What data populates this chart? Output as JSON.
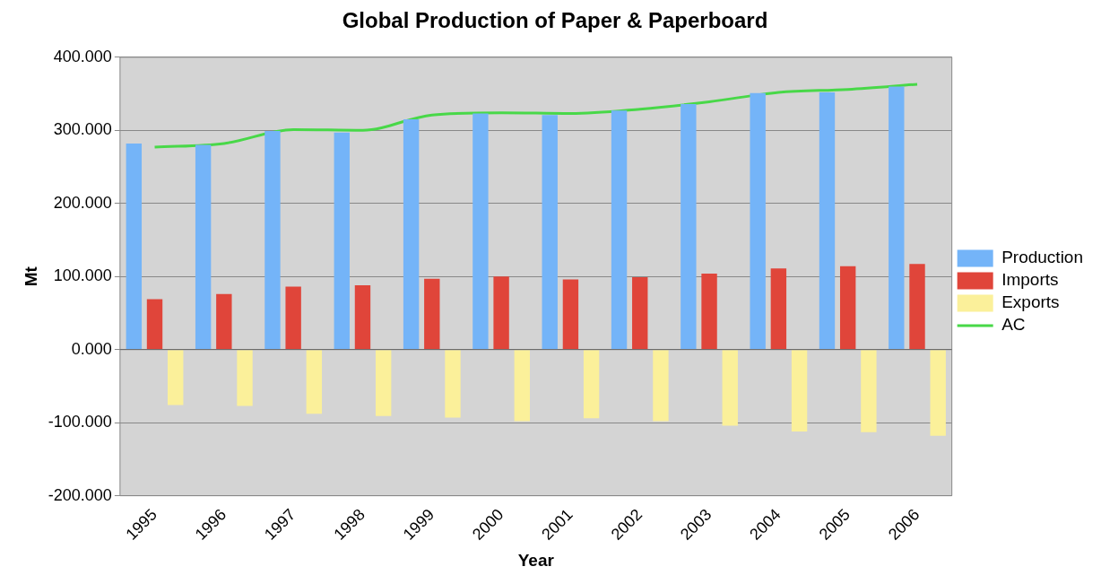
{
  "chart_data": {
    "type": "bar",
    "title": "Global Production of Paper & Paperboard",
    "xlabel": "Year",
    "ylabel": "Mt",
    "categories": [
      "1995",
      "1996",
      "1997",
      "1998",
      "1999",
      "2000",
      "2001",
      "2002",
      "2003",
      "2004",
      "2005",
      "2006"
    ],
    "series": [
      {
        "name": "Production",
        "color": "#74b4f8",
        "values": [
          282,
          280,
          299,
          297,
          315,
          323,
          321,
          327,
          336,
          351,
          352,
          360
        ]
      },
      {
        "name": "Imports",
        "color": "#e0453a",
        "values": [
          69,
          76,
          86,
          88,
          97,
          100,
          96,
          99,
          104,
          111,
          114,
          117
        ]
      },
      {
        "name": "Exports",
        "color": "#fbf09a",
        "values": [
          -76,
          -77,
          -88,
          -91,
          -93,
          -98,
          -94,
          -98,
          -104,
          -112,
          -113,
          -118
        ]
      },
      {
        "name": "AC",
        "type": "line",
        "color": "#48d848",
        "marker": "none",
        "values": [
          277,
          282,
          301,
          300,
          321,
          324,
          323,
          329,
          339,
          352,
          356,
          363
        ]
      }
    ],
    "ylim": [
      -200,
      400
    ],
    "yticks": [
      {
        "value": -200,
        "label": "-200.000"
      },
      {
        "value": -100,
        "label": "-100.000"
      },
      {
        "value": 0,
        "label": "0.000"
      },
      {
        "value": 100,
        "label": "100.000"
      },
      {
        "value": 200,
        "label": "200.000"
      },
      {
        "value": 300,
        "label": "300.000"
      },
      {
        "value": 400,
        "label": "400.000"
      }
    ],
    "grid": "y",
    "legend": "right"
  }
}
